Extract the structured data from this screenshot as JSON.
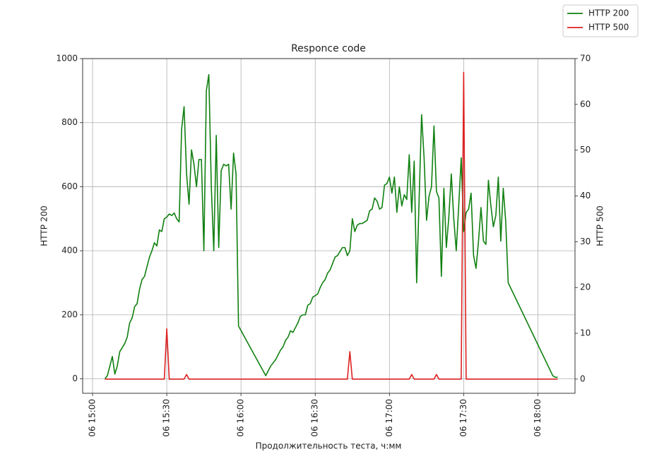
{
  "chart_data": {
    "type": "line",
    "title": "Responce code",
    "x_label": "Продолжительность теста, ч:мм",
    "y_label": "HTTP 200",
    "y2_label": "HTTP 500",
    "grid": true,
    "legend": "upper right",
    "x": [
      "06 15:05",
      "06 15:06",
      "06 15:08",
      "06 15:09",
      "06 15:10",
      "06 15:11",
      "06 15:13",
      "06 15:14",
      "06 15:15",
      "06 15:16",
      "06 15:17",
      "06 15:18",
      "06 15:19",
      "06 15:20",
      "06 15:21",
      "06 15:23",
      "06 15:24",
      "06 15:25",
      "06 15:26",
      "06 15:27",
      "06 15:28",
      "06 15:29",
      "06 15:30",
      "06 15:31",
      "06 15:32",
      "06 15:33",
      "06 15:34",
      "06 15:35",
      "06 15:36",
      "06 15:37",
      "06 15:38",
      "06 15:39",
      "06 15:40",
      "06 15:41",
      "06 15:42",
      "06 15:43",
      "06 15:44",
      "06 15:45",
      "06 15:46",
      "06 15:47",
      "06 15:48",
      "06 15:49",
      "06 15:50",
      "06 15:51",
      "06 15:52",
      "06 15:53",
      "06 15:54",
      "06 15:55",
      "06 15:56",
      "06 15:57",
      "06 15:58",
      "06 15:59",
      "06 16:10",
      "06 16:11",
      "06 16:12",
      "06 16:14",
      "06 16:15",
      "06 16:16",
      "06 16:17",
      "06 16:18",
      "06 16:19",
      "06 16:20",
      "06 16:21",
      "06 16:23",
      "06 16:24",
      "06 16:25",
      "06 16:26",
      "06 16:27",
      "06 16:28",
      "06 16:29",
      "06 16:31",
      "06 16:32",
      "06 16:33",
      "06 16:34",
      "06 16:35",
      "06 16:36",
      "06 16:37",
      "06 16:38",
      "06 16:39",
      "06 16:41",
      "06 16:42",
      "06 16:43",
      "06 16:44",
      "06 16:45",
      "06 16:46",
      "06 16:47",
      "06 16:48",
      "06 16:49",
      "06 16:51",
      "06 16:52",
      "06 16:53",
      "06 16:54",
      "06 16:55",
      "06 16:56",
      "06 16:57",
      "06 16:58",
      "06 16:59",
      "06 17:00",
      "06 17:01",
      "06 17:02",
      "06 17:03",
      "06 17:04",
      "06 17:05",
      "06 17:06",
      "06 17:07",
      "06 17:08",
      "06 17:09",
      "06 17:10",
      "06 17:11",
      "06 17:12",
      "06 17:13",
      "06 17:14",
      "06 17:15",
      "06 17:16",
      "06 17:17",
      "06 17:18",
      "06 17:19",
      "06 17:20",
      "06 17:21",
      "06 17:22",
      "06 17:23",
      "06 17:24",
      "06 17:25",
      "06 17:26",
      "06 17:27",
      "06 17:28",
      "06 17:29",
      "06 17:30",
      "06 17:31",
      "06 17:32",
      "06 17:33",
      "06 17:34",
      "06 17:35",
      "06 17:36",
      "06 17:37",
      "06 17:38",
      "06 17:39",
      "06 17:40",
      "06 17:41",
      "06 17:42",
      "06 17:43",
      "06 17:44",
      "06 17:45",
      "06 17:46",
      "06 17:47",
      "06 17:48",
      "06 18:06",
      "06 18:07",
      "06 18:08"
    ],
    "series": [
      {
        "name": "HTTP 200",
        "color": "#108010",
        "axis": "y",
        "values": [
          0,
          10,
          70,
          15,
          40,
          85,
          110,
          130,
          175,
          190,
          225,
          235,
          280,
          310,
          320,
          380,
          400,
          425,
          415,
          465,
          460,
          500,
          505,
          515,
          510,
          518,
          500,
          490,
          780,
          850,
          640,
          545,
          715,
          670,
          600,
          685,
          685,
          400,
          900,
          950,
          600,
          400,
          760,
          410,
          650,
          670,
          665,
          670,
          530,
          705,
          640,
          165,
          10,
          25,
          40,
          60,
          75,
          90,
          100,
          120,
          130,
          150,
          145,
          175,
          195,
          200,
          200,
          230,
          235,
          255,
          265,
          285,
          300,
          310,
          330,
          340,
          360,
          380,
          385,
          410,
          410,
          385,
          400,
          500,
          460,
          480,
          485,
          485,
          495,
          525,
          530,
          565,
          555,
          530,
          535,
          605,
          610,
          630,
          580,
          630,
          520,
          600,
          540,
          575,
          560,
          700,
          520,
          680,
          300,
          560,
          825,
          690,
          495,
          570,
          600,
          790,
          585,
          565,
          320,
          595,
          410,
          505,
          640,
          500,
          400,
          540,
          690,
          460,
          520,
          530,
          580,
          385,
          345,
          430,
          535,
          430,
          420,
          620,
          540,
          475,
          510,
          630,
          430,
          595,
          490,
          300,
          10,
          5,
          5
        ]
      },
      {
        "name": "HTTP 500",
        "color": "#dd2222",
        "axis": "y2",
        "values": [
          0,
          0,
          0,
          0,
          0,
          0,
          0,
          0,
          0,
          0,
          0,
          0,
          0,
          0,
          0,
          0,
          0,
          0,
          0,
          0,
          0,
          0,
          11,
          0,
          0,
          0,
          0,
          0,
          0,
          0,
          1,
          0,
          0,
          0,
          0,
          0,
          0,
          0,
          0,
          0,
          0,
          0,
          0,
          0,
          0,
          0,
          0,
          0,
          0,
          0,
          0,
          0,
          0,
          0,
          0,
          0,
          0,
          0,
          0,
          0,
          0,
          0,
          0,
          0,
          0,
          0,
          0,
          0,
          0,
          0,
          0,
          0,
          0,
          0,
          0,
          0,
          0,
          0,
          0,
          0,
          0,
          0,
          6,
          0,
          0,
          0,
          0,
          0,
          0,
          0,
          0,
          0,
          0,
          0,
          0,
          0,
          0,
          0,
          0,
          0,
          0,
          0,
          0,
          0,
          0,
          0,
          1,
          0,
          0,
          0,
          0,
          0,
          0,
          0,
          0,
          0,
          1,
          0,
          0,
          0,
          0,
          0,
          0,
          0,
          0,
          0,
          0,
          67,
          0,
          0,
          0,
          0,
          0,
          0,
          0,
          0,
          0,
          0,
          0,
          0,
          0,
          0,
          0,
          0,
          0,
          0,
          0,
          0,
          0
        ]
      }
    ],
    "xlim": [
      "06 14:56",
      "06 18:15"
    ],
    "xticks": [
      "06 15:00",
      "06 15:30",
      "06 16:00",
      "06 16:30",
      "06 17:00",
      "06 17:30",
      "06 18:00"
    ],
    "ylim": [
      -45,
      1000
    ],
    "yticks": [
      0,
      200,
      400,
      600,
      800,
      1000
    ],
    "y2lim": [
      -3.1,
      70
    ],
    "y2ticks": [
      0,
      10,
      20,
      30,
      40,
      50,
      60,
      70
    ]
  }
}
